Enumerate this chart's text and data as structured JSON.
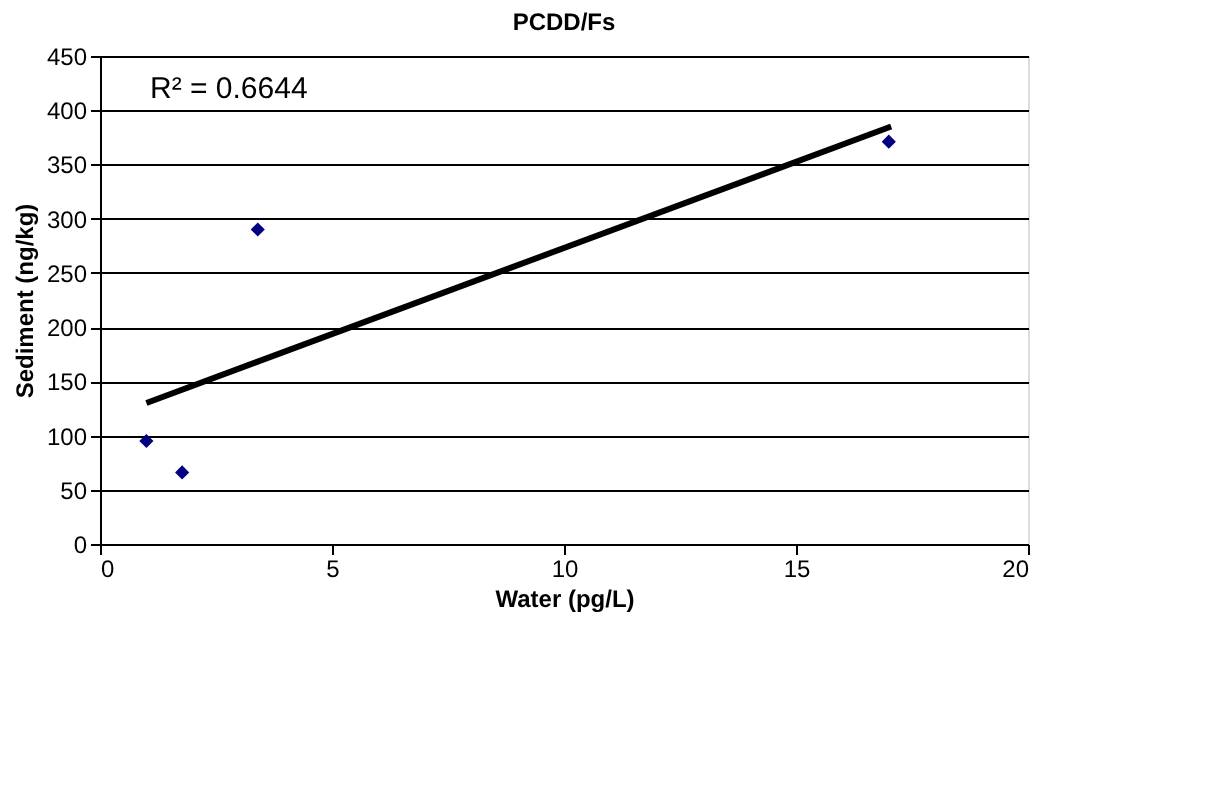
{
  "chart_data": {
    "type": "scatter",
    "title": "PCDD/Fs",
    "xlabel": "Water (pg/L)",
    "ylabel": "Sediment (ng/kg)",
    "series": [
      {
        "color": "#000080",
        "marker": "diamond",
        "x": [
          1.0,
          1.77,
          3.4,
          17.0
        ],
        "values": [
          95,
          66,
          290,
          371
        ]
      },
      {
        "type": "line",
        "color": "#000000",
        "marker": "none",
        "line_style": "solid",
        "x": [
          1.0,
          17.05
        ],
        "values": [
          130,
          385
        ]
      }
    ],
    "annotations": [
      "R² = 0.6644"
    ],
    "xlim": [
      0,
      20
    ],
    "xticks": [
      0,
      5,
      10,
      15,
      20
    ],
    "ylim": [
      0,
      450
    ],
    "yticks": [
      0,
      50,
      100,
      150,
      200,
      250,
      300,
      350,
      400,
      450
    ],
    "grid": "y"
  }
}
